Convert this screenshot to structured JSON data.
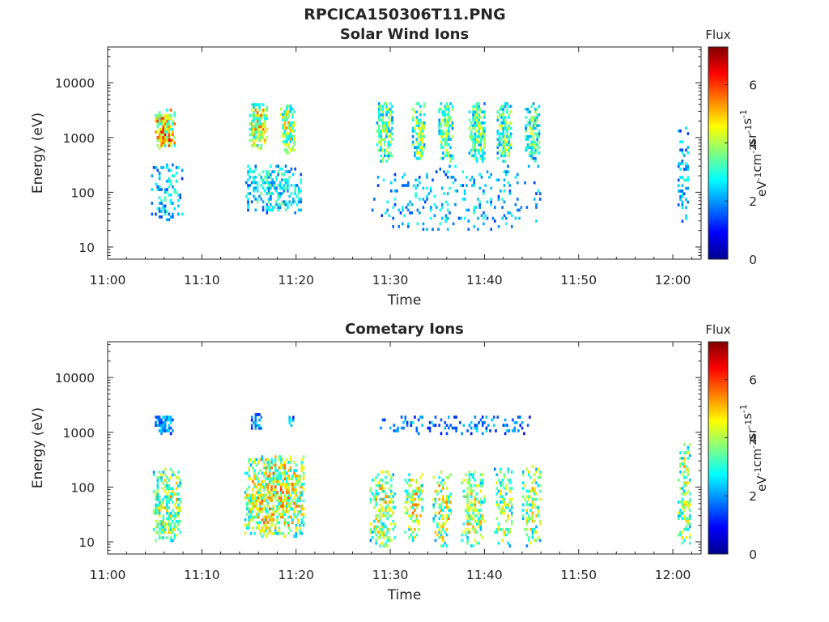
{
  "figure_title": "RPCICA150306T11.PNG",
  "colors": {
    "colormap": [
      "#00008f",
      "#0000ff",
      "#0080ff",
      "#00ffff",
      "#80ff80",
      "#ffff00",
      "#ff8000",
      "#ff0000",
      "#800000"
    ],
    "frame": "#262626"
  },
  "chart_data": [
    {
      "type": "heatmap",
      "title": "Solar Wind Ions",
      "xlabel": "Time",
      "ylabel": "Energy (eV)",
      "y_scale": "log",
      "ylim": [
        6,
        45000
      ],
      "xlim": [
        "11:00",
        "12:03"
      ],
      "x_ticks": [
        "11:00",
        "11:10",
        "11:20",
        "11:30",
        "11:40",
        "11:50",
        "12:00"
      ],
      "y_ticks": [
        "10",
        "100",
        "1000",
        "10000"
      ],
      "colorbar": {
        "title": "Flux",
        "label": "eV-1cm-2sr-1s-1",
        "range": [
          0,
          7.3
        ],
        "ticks": [
          "0",
          "2",
          "4",
          "6"
        ]
      },
      "clusters": [
        {
          "t0": 5.0,
          "t1": 7.2,
          "e0": 600,
          "e1": 3200,
          "level": 5.2,
          "density": 0.9
        },
        {
          "t0": 4.6,
          "t1": 8.0,
          "e0": 30,
          "e1": 300,
          "level": 2.6,
          "density": 0.35
        },
        {
          "t0": 15.0,
          "t1": 16.8,
          "e0": 600,
          "e1": 4000,
          "level": 4.6,
          "density": 0.85
        },
        {
          "t0": 18.3,
          "t1": 19.8,
          "e0": 500,
          "e1": 4000,
          "level": 4.2,
          "density": 0.8
        },
        {
          "t0": 14.6,
          "t1": 20.5,
          "e0": 40,
          "e1": 300,
          "level": 2.9,
          "density": 0.45
        },
        {
          "t0": 28.5,
          "t1": 30.2,
          "e0": 350,
          "e1": 4000,
          "level": 3.6,
          "density": 0.75
        },
        {
          "t0": 32.3,
          "t1": 33.6,
          "e0": 350,
          "e1": 4000,
          "level": 3.7,
          "density": 0.75
        },
        {
          "t0": 35.1,
          "t1": 36.6,
          "e0": 350,
          "e1": 4000,
          "level": 3.6,
          "density": 0.75
        },
        {
          "t0": 38.3,
          "t1": 40.1,
          "e0": 350,
          "e1": 4000,
          "level": 3.6,
          "density": 0.75
        },
        {
          "t0": 41.3,
          "t1": 42.9,
          "e0": 350,
          "e1": 4000,
          "level": 3.7,
          "density": 0.75
        },
        {
          "t0": 44.3,
          "t1": 45.8,
          "e0": 350,
          "e1": 4000,
          "level": 3.4,
          "density": 0.7
        },
        {
          "t0": 28.0,
          "t1": 46.0,
          "e0": 20,
          "e1": 300,
          "level": 2.5,
          "density": 0.12
        },
        {
          "t0": 60.5,
          "t1": 61.6,
          "e0": 25,
          "e1": 1500,
          "level": 2.4,
          "density": 0.3
        }
      ]
    },
    {
      "type": "heatmap",
      "title": "Cometary Ions",
      "xlabel": "Time",
      "ylabel": "Energy (eV)",
      "y_scale": "log",
      "ylim": [
        6,
        45000
      ],
      "xlim": [
        "11:00",
        "12:03"
      ],
      "x_ticks": [
        "11:00",
        "11:10",
        "11:20",
        "11:30",
        "11:40",
        "11:50",
        "12:00"
      ],
      "y_ticks": [
        "10",
        "100",
        "1000",
        "10000"
      ],
      "colorbar": {
        "title": "Flux",
        "label": "eV-1cm-2sr-1s-1",
        "range": [
          0,
          7.3
        ],
        "ticks": [
          "0",
          "2",
          "4",
          "6"
        ]
      },
      "clusters": [
        {
          "t0": 5.0,
          "t1": 7.0,
          "e0": 900,
          "e1": 2000,
          "level": 2.2,
          "density": 0.7
        },
        {
          "t0": 15.2,
          "t1": 16.2,
          "e0": 1000,
          "e1": 2000,
          "level": 2.1,
          "density": 0.8
        },
        {
          "t0": 19.0,
          "t1": 19.6,
          "e0": 1000,
          "e1": 1800,
          "level": 2.4,
          "density": 0.6
        },
        {
          "t0": 4.8,
          "t1": 7.8,
          "e0": 10,
          "e1": 200,
          "level": 4.2,
          "density": 0.6
        },
        {
          "t0": 14.5,
          "t1": 20.8,
          "e0": 12,
          "e1": 350,
          "level": 4.6,
          "density": 0.7
        },
        {
          "t0": 27.8,
          "t1": 30.5,
          "e0": 8,
          "e1": 200,
          "level": 4.3,
          "density": 0.5
        },
        {
          "t0": 31.5,
          "t1": 33.4,
          "e0": 8,
          "e1": 200,
          "level": 4.4,
          "density": 0.45
        },
        {
          "t0": 34.5,
          "t1": 36.5,
          "e0": 8,
          "e1": 200,
          "level": 4.4,
          "density": 0.45
        },
        {
          "t0": 37.5,
          "t1": 40.0,
          "e0": 8,
          "e1": 200,
          "level": 4.3,
          "density": 0.45
        },
        {
          "t0": 41.0,
          "t1": 43.0,
          "e0": 8,
          "e1": 220,
          "level": 4.0,
          "density": 0.4
        },
        {
          "t0": 44.0,
          "t1": 46.0,
          "e0": 8,
          "e1": 250,
          "level": 4.1,
          "density": 0.4
        },
        {
          "t0": 28.5,
          "t1": 46.0,
          "e0": 900,
          "e1": 1800,
          "level": 2.1,
          "density": 0.25
        },
        {
          "t0": 60.5,
          "t1": 61.8,
          "e0": 8,
          "e1": 600,
          "level": 4.2,
          "density": 0.5
        }
      ]
    }
  ]
}
